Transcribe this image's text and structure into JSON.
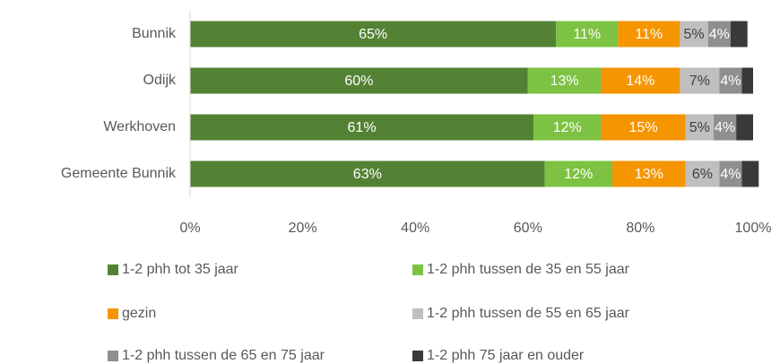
{
  "chart_data": {
    "type": "stacked_bar_horizontal",
    "categories": [
      "Bunnik",
      "Odijk",
      "Werkhoven",
      "Gemeente Bunnik"
    ],
    "series": [
      {
        "name": "1-2 phh tot 35 jaar",
        "color": "#548235",
        "label_color": "#ffffff",
        "values": [
          65,
          60,
          61,
          63
        ],
        "value_labels": [
          "65%",
          "60%",
          "61%",
          "63%"
        ]
      },
      {
        "name": "1-2 phh tussen de 35 en 55 jaar",
        "color": "#7dc242",
        "label_color": "#ffffff",
        "values": [
          11,
          13,
          12,
          12
        ],
        "value_labels": [
          "11%",
          "13%",
          "12%",
          "12%"
        ]
      },
      {
        "name": "gezin",
        "color": "#f59500",
        "label_color": "#ffffff",
        "values": [
          11,
          14,
          15,
          13
        ],
        "value_labels": [
          "11%",
          "14%",
          "15%",
          "13%"
        ]
      },
      {
        "name": "1-2 phh tussen de 55 en 65 jaar",
        "color": "#bfbfbf",
        "label_color": "#404040",
        "values": [
          5,
          7,
          5,
          6
        ],
        "value_labels": [
          "5%",
          "7%",
          "5%",
          "6%"
        ]
      },
      {
        "name": "1-2 phh tussen de 65 en 75 jaar",
        "color": "#8f8f8f",
        "label_color": "#ffffff",
        "values": [
          4,
          4,
          4,
          4
        ],
        "value_labels": [
          "4%",
          "4%",
          "4%",
          "4%"
        ]
      },
      {
        "name": "1-2 phh 75 jaar en ouder",
        "color": "#3a3a3a",
        "values": [
          3,
          2,
          3,
          3
        ]
      }
    ],
    "xlim": [
      0,
      100
    ],
    "xticks": [
      {
        "value": 0,
        "label": "0%"
      },
      {
        "value": 20,
        "label": "20%"
      },
      {
        "value": 40,
        "label": "40%"
      },
      {
        "value": 60,
        "label": "60%"
      },
      {
        "value": 80,
        "label": "80%"
      },
      {
        "value": 100,
        "label": "100%"
      }
    ],
    "grid": false,
    "legend": "bottom"
  }
}
